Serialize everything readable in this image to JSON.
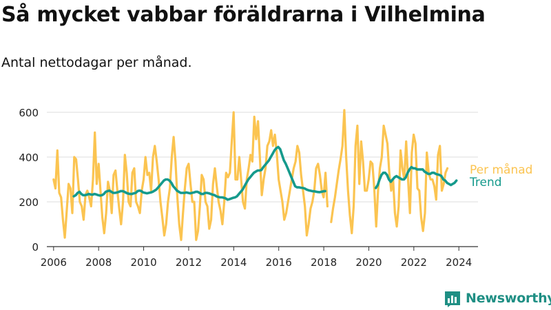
{
  "title": "Så mycket vabbar föräldrarna i Vilhelmina",
  "subtitle": "Antal nettodagar per månad.",
  "brand": "Newsworthy",
  "colors": {
    "monthly": "#fbc451",
    "trend": "#159a8c",
    "brand": "#1f8f84",
    "grid": "#dddddd",
    "axis": "#333333"
  },
  "chart_data": {
    "type": "line",
    "x_unit": "year",
    "xlim": [
      2005.7,
      2024.85
    ],
    "ylim": [
      0,
      640
    ],
    "yticks": [
      0,
      200,
      400,
      600
    ],
    "xticks": [
      2006,
      2008,
      2010,
      2012,
      2014,
      2016,
      2018,
      2020,
      2022,
      2024
    ],
    "grid": "horizontal",
    "series": [
      {
        "name": "Per månad",
        "color": "#fbc451",
        "start": 2006.0,
        "step": 0.0833,
        "values": [
          300,
          260,
          430,
          240,
          220,
          120,
          40,
          160,
          280,
          260,
          150,
          400,
          390,
          300,
          200,
          180,
          120,
          230,
          250,
          220,
          180,
          300,
          510,
          280,
          370,
          250,
          130,
          60,
          150,
          290,
          250,
          150,
          320,
          340,
          250,
          170,
          100,
          200,
          410,
          330,
          200,
          180,
          330,
          350,
          200,
          180,
          150,
          250,
          300,
          400,
          320,
          330,
          250,
          400,
          450,
          380,
          300,
          200,
          130,
          50,
          100,
          200,
          260,
          400,
          490,
          380,
          220,
          100,
          30,
          150,
          260,
          350,
          370,
          280,
          200,
          200,
          30,
          70,
          180,
          320,
          300,
          200,
          180,
          80,
          120,
          280,
          350,
          270,
          200,
          160,
          100,
          200,
          330,
          310,
          330,
          470,
          600,
          300,
          300,
          400,
          300,
          200,
          170,
          300,
          350,
          410,
          380,
          580,
          480,
          560,
          400,
          230,
          300,
          350,
          450,
          470,
          520,
          450,
          500,
          420,
          300,
          250,
          200,
          120,
          150,
          200,
          250,
          300,
          350,
          380,
          450,
          420,
          320,
          250,
          180,
          50,
          100,
          170,
          200,
          250,
          350,
          370,
          320,
          250,
          220,
          330,
          180,
          null,
          110,
          170,
          220,
          280,
          340,
          390,
          450,
          610,
          400,
          250,
          140,
          60,
          180,
          450,
          540,
          280,
          470,
          380,
          250,
          250,
          300,
          380,
          370,
          260,
          90,
          250,
          350,
          400,
          540,
          500,
          460,
          330,
          250,
          300,
          150,
          90,
          180,
          430,
          350,
          300,
          470,
          300,
          150,
          420,
          500,
          460,
          260,
          250,
          130,
          70,
          150,
          420,
          330,
          300,
          300,
          270,
          210,
          410,
          450,
          250,
          280,
          330,
          350
        ]
      },
      {
        "name": "Trend",
        "color": "#159a8c",
        "start": 2006.9,
        "step": 0.0833,
        "values": [
          225,
          230,
          240,
          245,
          235,
          230,
          230,
          232,
          235,
          233,
          232,
          235,
          233,
          230,
          228,
          230,
          235,
          245,
          248,
          250,
          245,
          240,
          240,
          242,
          245,
          248,
          248,
          245,
          240,
          237,
          235,
          235,
          238,
          240,
          248,
          250,
          248,
          242,
          240,
          238,
          240,
          242,
          245,
          250,
          255,
          265,
          275,
          285,
          295,
          300,
          300,
          295,
          285,
          270,
          260,
          250,
          245,
          240,
          240,
          240,
          242,
          240,
          238,
          240,
          242,
          245,
          245,
          240,
          235,
          235,
          240,
          240,
          238,
          235,
          232,
          230,
          225,
          222,
          220,
          220,
          218,
          215,
          210,
          212,
          215,
          218,
          220,
          225,
          235,
          245,
          255,
          270,
          285,
          300,
          310,
          320,
          330,
          335,
          340,
          340,
          342,
          355,
          365,
          375,
          385,
          400,
          415,
          430,
          440,
          445,
          435,
          410,
          385,
          370,
          350,
          330,
          310,
          290,
          270,
          265,
          265,
          263,
          262,
          260,
          255,
          252,
          250,
          248,
          247,
          246,
          244,
          243,
          245,
          247,
          248,
          null,
          null,
          null,
          null,
          null,
          null,
          null,
          null,
          null,
          null,
          null,
          null,
          null,
          null,
          null,
          null,
          null,
          null,
          null,
          null,
          null,
          null,
          null,
          null,
          null,
          null,
          262,
          275,
          300,
          320,
          330,
          330,
          320,
          300,
          290,
          300,
          310,
          315,
          310,
          305,
          300,
          300,
          310,
          330,
          345,
          355,
          350,
          350,
          345,
          345,
          345,
          345,
          335,
          330,
          325,
          325,
          330,
          330,
          325,
          322,
          320,
          315,
          300,
          295,
          285,
          280,
          275,
          280,
          285,
          295
        ]
      }
    ]
  }
}
